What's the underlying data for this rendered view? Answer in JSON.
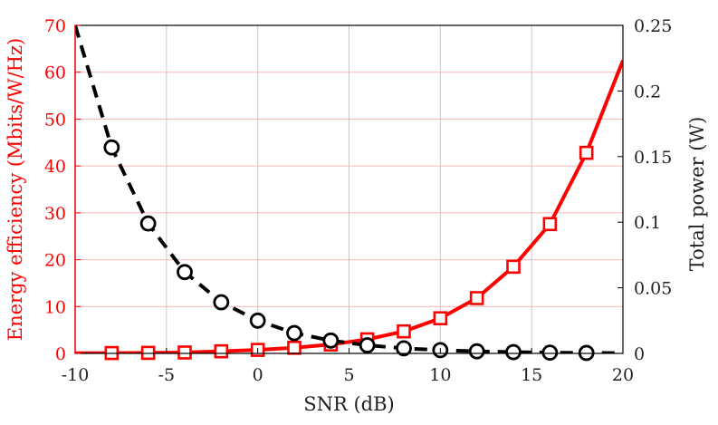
{
  "chart_data": {
    "type": "line",
    "title": "",
    "xlabel": "SNR (dB)",
    "ylabel_left": "Energy efficiency (Mbits/W/Hz)",
    "ylabel_right": "Total power (W)",
    "xlim": [
      -10,
      20
    ],
    "ylim_left": [
      0,
      70
    ],
    "ylim_right": [
      0,
      0.25
    ],
    "xticks": [
      -10,
      -5,
      0,
      5,
      10,
      15,
      20
    ],
    "xtick_labels": [
      "-10",
      "-5",
      "0",
      "5",
      "10",
      "15",
      "20"
    ],
    "yticks_left": [
      0,
      10,
      20,
      30,
      40,
      50,
      60,
      70
    ],
    "ytick_labels_left": [
      "0",
      "10",
      "20",
      "30",
      "40",
      "50",
      "60",
      "70"
    ],
    "yticks_right": [
      0,
      0.05,
      0.1,
      0.15,
      0.2,
      0.25
    ],
    "ytick_labels_right": [
      "0",
      "0.05",
      "0.1",
      "0.15",
      "0.2",
      "0.25"
    ],
    "grid": true,
    "legend": "none",
    "colors": {
      "left_axis": "#ff0000",
      "left_grid": "#f4b8b8",
      "right_axis": "#000000",
      "grid": "#c8c8c8"
    },
    "series": [
      {
        "axis": "left",
        "color": "#ff0000",
        "line_style": "solid",
        "marker": "square",
        "curve_x": [
          -10,
          -8,
          -6,
          -4,
          -2,
          0,
          2,
          4,
          6,
          8,
          10,
          12,
          14,
          16,
          18,
          20
        ],
        "curve_y": [
          0.05,
          0.08,
          0.12,
          0.2,
          0.45,
          0.75,
          1.2,
          1.9,
          3.0,
          4.7,
          7.5,
          11.8,
          18.5,
          27.6,
          42.8,
          62.5
        ],
        "marker_x": [
          -8,
          -6,
          -4,
          -2,
          0,
          2,
          4,
          6,
          8,
          10,
          12,
          14,
          16,
          18
        ],
        "marker_y": [
          0.08,
          0.12,
          0.2,
          0.45,
          0.75,
          1.2,
          1.9,
          3.0,
          4.7,
          7.5,
          11.8,
          18.5,
          27.6,
          42.8
        ]
      },
      {
        "axis": "right",
        "color": "#000000",
        "line_style": "dashed",
        "marker": "circle",
        "curve_x": [
          -10,
          -8,
          -6,
          -4,
          -2,
          0,
          2,
          4,
          6,
          8,
          10,
          12,
          14,
          16,
          18,
          20
        ],
        "curve_y": [
          0.25,
          0.157,
          0.099,
          0.062,
          0.039,
          0.025,
          0.0155,
          0.0098,
          0.0062,
          0.0039,
          0.0025,
          0.0016,
          0.001,
          0.0006,
          0.0004,
          0.0002
        ],
        "marker_x": [
          -8,
          -6,
          -4,
          -2,
          0,
          2,
          4,
          6,
          8,
          10,
          12,
          14,
          16,
          18
        ],
        "marker_y": [
          0.157,
          0.099,
          0.062,
          0.039,
          0.025,
          0.0155,
          0.0098,
          0.0062,
          0.0039,
          0.0025,
          0.0016,
          0.001,
          0.0006,
          0.0004
        ]
      }
    ]
  }
}
